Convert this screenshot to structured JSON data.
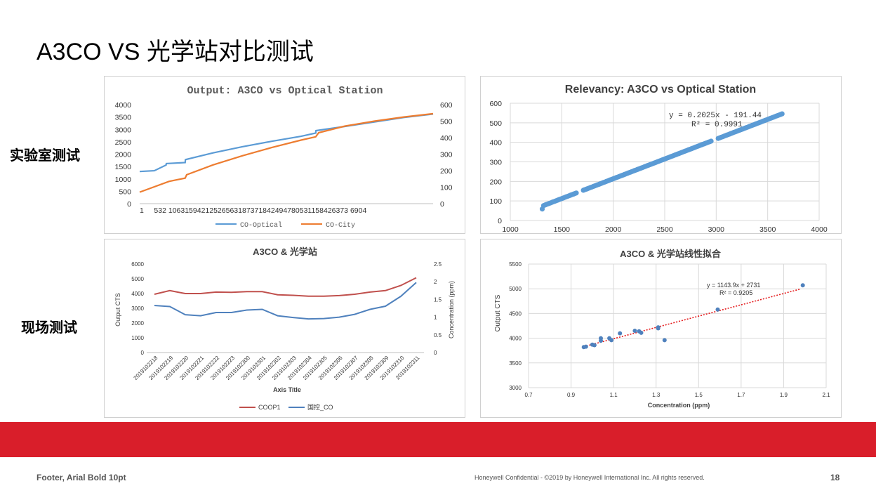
{
  "slide": {
    "title": "A3CO VS 光学站对比测试",
    "label_lab": "实验室测试",
    "label_field": "现场测试",
    "footer_left": "Footer, Arial Bold 10pt",
    "footer_mid": "Honeywell Confidential - ©2019 by Honeywell International Inc. All rights reserved.",
    "page_number": "18",
    "accent_color": "#d91e2a"
  },
  "chart_data": [
    {
      "type": "line",
      "title": "Output: A3CO vs Optical Station",
      "x_tick_labels": [
        "1",
        "532",
        "1063",
        "1594",
        "2125",
        "2656",
        "3187",
        "3718",
        "4249",
        "4780",
        "5311",
        "5842",
        "6373",
        "6904"
      ],
      "x_tick_text": "1     532 10631594212526563187371842494780531158426373 6904",
      "y_left_ticks": [
        "4000",
        "3500",
        "3000",
        "2500",
        "2000",
        "1500",
        "1000",
        "500",
        "0"
      ],
      "y_right_ticks": [
        "600",
        "500",
        "400",
        "300",
        "200",
        "100",
        "0"
      ],
      "ylim_left": [
        0,
        4000
      ],
      "ylim_right": [
        0,
        600
      ],
      "series": [
        {
          "name": "CO-Optical",
          "color": "#5b9bd5",
          "axis": "left",
          "x": [
            0,
            0.05,
            0.09,
            0.091,
            0.155,
            0.156,
            0.25,
            0.35,
            0.45,
            0.55,
            0.6,
            0.601,
            0.7,
            0.8,
            0.9,
            1.0
          ],
          "values": [
            1300,
            1330,
            1560,
            1620,
            1660,
            1780,
            2050,
            2300,
            2520,
            2720,
            2850,
            2950,
            3120,
            3300,
            3480,
            3620
          ]
        },
        {
          "name": "CO-City",
          "color": "#ed7d31",
          "axis": "right",
          "x": [
            0,
            0.1,
            0.155,
            0.16,
            0.25,
            0.35,
            0.45,
            0.55,
            0.6,
            0.61,
            0.7,
            0.8,
            0.9,
            1.0
          ],
          "values": [
            70,
            135,
            155,
            175,
            235,
            290,
            340,
            385,
            405,
            430,
            470,
            500,
            525,
            545
          ]
        }
      ]
    },
    {
      "type": "scatter",
      "title": "Relevancy: A3CO vs Optical Station",
      "equation": "y = 0.2025x - 191.44",
      "r_squared": "R² = 0.9991",
      "x_ticks": [
        "1000",
        "1500",
        "2000",
        "2500",
        "3000",
        "3500",
        "4000"
      ],
      "y_ticks": [
        "600",
        "500",
        "400",
        "300",
        "200",
        "100",
        "0"
      ],
      "xlim": [
        1000,
        4000
      ],
      "ylim": [
        0,
        600
      ],
      "color": "#5b9bd5",
      "slope": 0.2025,
      "intercept": -191.44,
      "x_range": [
        1310,
        3640
      ]
    },
    {
      "type": "line",
      "title": "A3CO & 光学站",
      "xlabel": "Axis Title",
      "ylabel_left": "Output CTS",
      "ylabel_right": "Concentration (ppm)",
      "categories": [
        "2019102218",
        "2019102219",
        "2019102220",
        "2019102221",
        "2019102222",
        "2019102223",
        "2019102300",
        "2019102301",
        "2019102302",
        "2019102303",
        "2019102304",
        "2019102305",
        "2019102306",
        "2019102307",
        "2019102308",
        "2019102309",
        "2019102310",
        "2019102311"
      ],
      "y_left_ticks": [
        "6000",
        "5000",
        "4000",
        "3000",
        "2000",
        "1000",
        "0"
      ],
      "y_right_ticks": [
        "2.5",
        "2",
        "1.5",
        "1",
        "0.5",
        "0"
      ],
      "ylim_left": [
        0,
        6000
      ],
      "ylim_right": [
        0,
        2.5
      ],
      "series": [
        {
          "name": "COOP1",
          "color": "#c0504d",
          "axis": "left",
          "values": [
            3950,
            4200,
            4000,
            4000,
            4100,
            4080,
            4130,
            4130,
            3920,
            3880,
            3820,
            3820,
            3860,
            3950,
            4100,
            4200,
            4550,
            5070
          ]
        },
        {
          "name": "国控_CO",
          "color": "#4f81bd",
          "axis": "right",
          "values": [
            1.33,
            1.3,
            1.07,
            1.04,
            1.13,
            1.13,
            1.2,
            1.22,
            1.04,
            0.99,
            0.95,
            0.96,
            1.0,
            1.08,
            1.22,
            1.31,
            1.59,
            1.98
          ]
        }
      ]
    },
    {
      "type": "scatter",
      "title": "A3CO & 光学站线性拟合",
      "xlabel": "Concentration (ppm)",
      "ylabel": "Output CTS",
      "equation": "y = 1143.9x + 2731",
      "r_squared": "R² = 0.9205",
      "x_ticks": [
        "0.7",
        "0.9",
        "1.1",
        "1.3",
        "1.5",
        "1.7",
        "1.9",
        "2.1"
      ],
      "y_ticks": [
        "5500",
        "5000",
        "4500",
        "4000",
        "3500",
        "3000"
      ],
      "xlim": [
        0.7,
        2.1
      ],
      "ylim": [
        3000,
        5500
      ],
      "color": "#4f81bd",
      "trend_color": "#e41a1c",
      "slope": 1143.9,
      "intercept": 2731,
      "trend_range": [
        0.96,
        1.98
      ],
      "points": [
        [
          0.96,
          3820
        ],
        [
          0.97,
          3830
        ],
        [
          1.0,
          3870
        ],
        [
          1.01,
          3860
        ],
        [
          1.04,
          3950
        ],
        [
          1.04,
          4000
        ],
        [
          1.08,
          4000
        ],
        [
          1.09,
          3960
        ],
        [
          1.13,
          4100
        ],
        [
          1.2,
          4150
        ],
        [
          1.22,
          4140
        ],
        [
          1.23,
          4110
        ],
        [
          1.31,
          4200
        ],
        [
          1.31,
          4220
        ],
        [
          1.34,
          3960
        ],
        [
          1.59,
          4580
        ],
        [
          1.99,
          5070
        ]
      ]
    }
  ]
}
